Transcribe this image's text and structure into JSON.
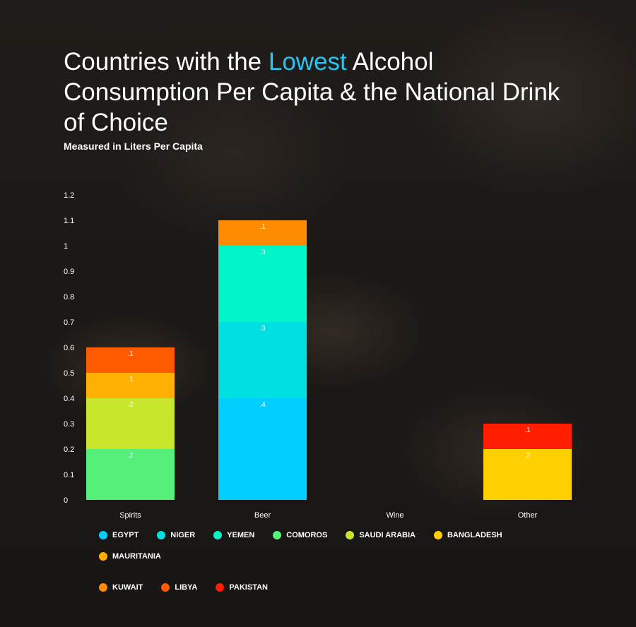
{
  "title": {
    "part1": "Countries with the ",
    "highlight": "Lowest",
    "part2": " Alcohol Consumption Per Capita & the National Drink of Choice"
  },
  "subtitle": "Measured in Liters Per Capita",
  "colors": {
    "highlight": "#2bc4f0",
    "EGYPT": "#00cfff",
    "NIGER": "#00e0e0",
    "YEMEN": "#00f5c8",
    "COMOROS": "#55f07a",
    "SAUDI ARABIA": "#c8e62c",
    "BANGLADESH": "#ffd000",
    "MAURITANIA": "#ffb000",
    "KUWAIT": "#ff8c00",
    "LIBYA": "#ff5a00",
    "PAKISTAN": "#ff1e00"
  },
  "chart_data": {
    "type": "bar",
    "stacked": true,
    "categories": [
      "Spirits",
      "Beer",
      "Wine",
      "Other"
    ],
    "ylim": [
      0,
      1.2
    ],
    "yticks": [
      "0",
      "0.1",
      "0.2",
      "0.3",
      "0.4",
      "0.5",
      "0.6",
      "0.7",
      "0.8",
      "0.9",
      "1",
      "1.1",
      "1.2"
    ],
    "ytick_values": [
      0,
      0.1,
      0.2,
      0.3,
      0.4,
      0.5,
      0.6,
      0.7,
      0.8,
      0.9,
      1,
      1.1,
      1.2
    ],
    "grid": false,
    "legend_position": "bottom",
    "series": [
      {
        "name": "EGYPT",
        "values": [
          0,
          0.4,
          0,
          0
        ],
        "labels": [
          "",
          ".4",
          "",
          ""
        ]
      },
      {
        "name": "NIGER",
        "values": [
          0,
          0.3,
          0,
          0
        ],
        "labels": [
          "",
          ".3",
          "",
          ""
        ]
      },
      {
        "name": "YEMEN",
        "values": [
          0,
          0.3,
          0,
          0
        ],
        "labels": [
          "",
          ".3",
          "",
          ""
        ]
      },
      {
        "name": "COMOROS",
        "values": [
          0.2,
          0,
          0,
          0
        ],
        "labels": [
          ".2",
          "",
          "",
          ""
        ]
      },
      {
        "name": "SAUDI ARABIA",
        "values": [
          0.2,
          0,
          0,
          0
        ],
        "labels": [
          ".2",
          "",
          "",
          ""
        ]
      },
      {
        "name": "BANGLADESH",
        "values": [
          0,
          0,
          0,
          0.2
        ],
        "labels": [
          "",
          "",
          "",
          ".2"
        ]
      },
      {
        "name": "MAURITANIA",
        "values": [
          0.1,
          0,
          0,
          0
        ],
        "labels": [
          ".1",
          "",
          "",
          ""
        ]
      },
      {
        "name": "KUWAIT",
        "values": [
          0,
          0.1,
          0,
          0
        ],
        "labels": [
          "",
          ".1",
          "",
          ""
        ]
      },
      {
        "name": "LIBYA",
        "values": [
          0.1,
          0,
          0,
          0
        ],
        "labels": [
          ".1",
          "",
          "",
          ""
        ]
      },
      {
        "name": "PAKISTAN",
        "values": [
          0,
          0,
          0,
          0.1
        ],
        "labels": [
          "",
          "",
          "",
          ".1"
        ]
      }
    ]
  }
}
